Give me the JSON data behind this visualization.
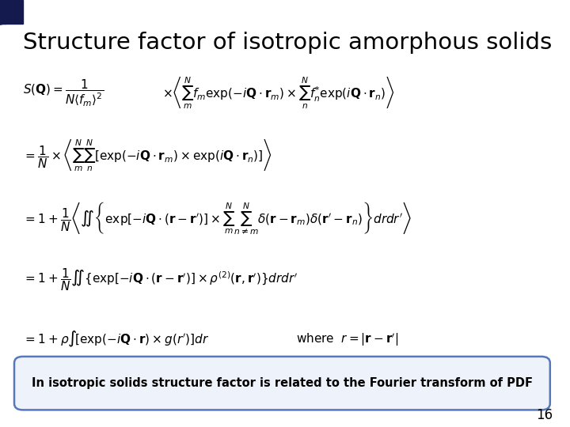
{
  "title": "Structure factor of isotropic amorphous solids",
  "title_fontsize": 21,
  "background_color": "#ffffff",
  "page_number": "16",
  "box_text": "In isotropic solids structure factor is related to the Fourier transform of PDF"
}
